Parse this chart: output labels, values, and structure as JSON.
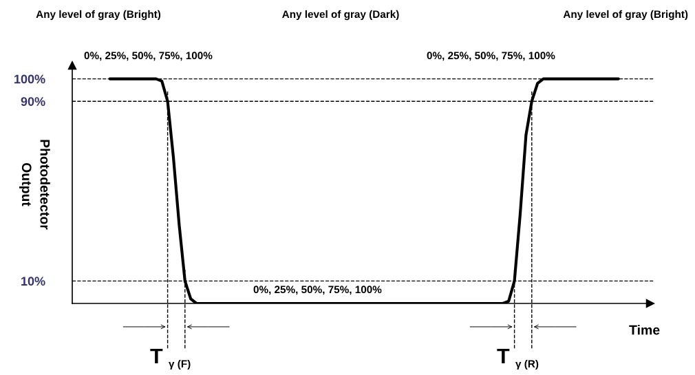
{
  "chart_data": {
    "type": "line",
    "xlabel": "Time",
    "ylabel": "Photodetector\nOutput",
    "categories": [
      null,
      null,
      null,
      null,
      null,
      null,
      null,
      null,
      null,
      null,
      null,
      null,
      null,
      null,
      null,
      null,
      null,
      null,
      null,
      null,
      null,
      null,
      null,
      null,
      null,
      null,
      null,
      null,
      null,
      null,
      null,
      null,
      null,
      null,
      null,
      null,
      null,
      null,
      null,
      null,
      null,
      null,
      null,
      null,
      null,
      null,
      null,
      null,
      null,
      null,
      null,
      null,
      null,
      null,
      null,
      null,
      null,
      null,
      null,
      null,
      null,
      null,
      null,
      null,
      null,
      null,
      null,
      null,
      null,
      null,
      null,
      null,
      null,
      null,
      null,
      null,
      null,
      null,
      null,
      null,
      null,
      null,
      null,
      null,
      null,
      null,
      null,
      null,
      null
    ],
    "series": [
      {
        "color": "#000000",
        "values": [
          100,
          100,
          100,
          100,
          100,
          100,
          100,
          100,
          100,
          99,
          90,
          65,
          35,
          10,
          2,
          0,
          0,
          0,
          0,
          0,
          0,
          0,
          0,
          0,
          0,
          0,
          0,
          0,
          0,
          0,
          0,
          0,
          0,
          0,
          0,
          0,
          0,
          0,
          0,
          0,
          0,
          0,
          0,
          0,
          0,
          0,
          0,
          0,
          0,
          0,
          0,
          0,
          0,
          0,
          0,
          0,
          0,
          0,
          0,
          0,
          0,
          0,
          0,
          0,
          0,
          0,
          0,
          0,
          0,
          1,
          10,
          40,
          75,
          90,
          98,
          100,
          100,
          100,
          100,
          100,
          100,
          100,
          100,
          100,
          100,
          100,
          100,
          100,
          100
        ]
      }
    ],
    "ylim": [
      0,
      106
    ],
    "yticks": [
      {
        "value": 10,
        "label": "10%"
      },
      {
        "value": 90,
        "label": "90%"
      },
      {
        "value": 100,
        "label": "100%"
      }
    ],
    "tick_labels": "y",
    "grid": false,
    "marker": "none",
    "line_style": "solid",
    "ref_lines": [
      {
        "axis": "y",
        "value": 100,
        "line_style": "dashed",
        "color": "#000000"
      },
      {
        "axis": "y",
        "value": 90,
        "line_style": "dashed",
        "color": "#000000"
      },
      {
        "axis": "y",
        "value": 10,
        "line_style": "dashed",
        "color": "#000000"
      }
    ],
    "annotations": [
      "Any level of gray (Bright)",
      "Any level of gray (Dark)",
      "Any level of gray (Bright)",
      "0%, 25%, 50%, 75%, 100%",
      "0%, 25%, 50%, 75%, 100%",
      "0%, 25%, 50%, 75%, 100%",
      "T",
      "γ (F)",
      "T",
      "γ (R)"
    ]
  }
}
